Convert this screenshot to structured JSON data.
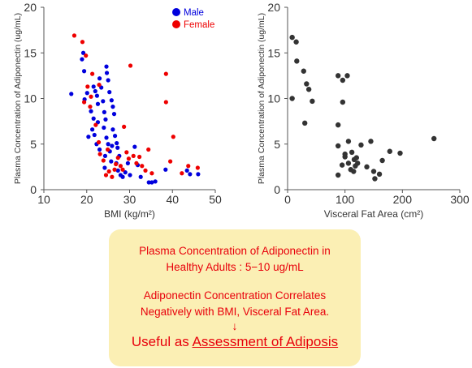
{
  "chart_data": [
    {
      "type": "scatter",
      "xlabel": "BMI (kg/m²)",
      "ylabel": "Plasma Concentration of Adiponectin (ug/mL)",
      "xlim": [
        10,
        50
      ],
      "ylim": [
        0,
        20
      ],
      "xticks": [
        "10",
        "20",
        "30",
        "40",
        "50"
      ],
      "yticks": [
        "0",
        "5",
        "10",
        "15",
        "20"
      ],
      "grid": false,
      "legend_position": "top-right",
      "series": [
        {
          "name": "Male",
          "color": "#0000dd",
          "points": [
            [
              16.4,
              10.5
            ],
            [
              19.2,
              15.0
            ],
            [
              18.9,
              14.3
            ],
            [
              19.4,
              13.0
            ],
            [
              20.1,
              10.6
            ],
            [
              19.5,
              9.9
            ],
            [
              21.6,
              11.3
            ],
            [
              22.0,
              10.8
            ],
            [
              22.4,
              10.3
            ],
            [
              22.6,
              9.4
            ],
            [
              23.0,
              12.2
            ],
            [
              21.0,
              8.6
            ],
            [
              21.6,
              7.8
            ],
            [
              22.6,
              7.4
            ],
            [
              20.4,
              5.8
            ],
            [
              21.3,
              6.6
            ],
            [
              21.8,
              6.0
            ],
            [
              22.3,
              5.0
            ],
            [
              23.0,
              4.4
            ],
            [
              23.4,
              11.2
            ],
            [
              23.8,
              9.7
            ],
            [
              24.1,
              8.5
            ],
            [
              24.4,
              7.7
            ],
            [
              24.6,
              13.5
            ],
            [
              24.7,
              12.8
            ],
            [
              25.0,
              12.0
            ],
            [
              25.3,
              10.7
            ],
            [
              25.8,
              9.8
            ],
            [
              26.1,
              9.1
            ],
            [
              26.4,
              8.3
            ],
            [
              24.0,
              6.8
            ],
            [
              24.6,
              5.7
            ],
            [
              25.0,
              5.0
            ],
            [
              25.4,
              4.2
            ],
            [
              25.7,
              3.1
            ],
            [
              24.2,
              2.4
            ],
            [
              26.1,
              6.6
            ],
            [
              26.6,
              5.9
            ],
            [
              27.0,
              5.1
            ],
            [
              27.2,
              4.6
            ],
            [
              27.6,
              3.7
            ],
            [
              26.9,
              2.9
            ],
            [
              27.3,
              2.1
            ],
            [
              27.9,
              1.6
            ],
            [
              28.4,
              1.4
            ],
            [
              29.0,
              1.9
            ],
            [
              29.6,
              2.9
            ],
            [
              30.1,
              1.6
            ],
            [
              31.2,
              4.7
            ],
            [
              31.9,
              2.7
            ],
            [
              32.6,
              1.4
            ],
            [
              34.5,
              0.8
            ],
            [
              35.2,
              0.8
            ],
            [
              36.0,
              0.9
            ],
            [
              38.4,
              2.2
            ],
            [
              43.4,
              2.1
            ],
            [
              44.1,
              1.7
            ],
            [
              46.0,
              1.7
            ],
            [
              24.3,
              3.7
            ],
            [
              25.9,
              4.8
            ]
          ]
        },
        {
          "name": "Female",
          "color": "#ee0000",
          "points": [
            [
              17.1,
              16.9
            ],
            [
              19.0,
              16.2
            ],
            [
              19.8,
              14.7
            ],
            [
              20.2,
              11.3
            ],
            [
              21.3,
              12.7
            ],
            [
              22.9,
              11.5
            ],
            [
              19.4,
              9.6
            ],
            [
              20.8,
              9.1
            ],
            [
              21.0,
              10.2
            ],
            [
              22.1,
              7.1
            ],
            [
              22.8,
              5.2
            ],
            [
              23.1,
              3.9
            ],
            [
              23.9,
              3.2
            ],
            [
              24.9,
              4.4
            ],
            [
              25.2,
              2.0
            ],
            [
              24.5,
              1.6
            ],
            [
              25.9,
              1.4
            ],
            [
              26.5,
              2.2
            ],
            [
              26.8,
              2.8
            ],
            [
              27.3,
              3.5
            ],
            [
              27.9,
              2.6
            ],
            [
              28.4,
              2.2
            ],
            [
              28.7,
              6.9
            ],
            [
              29.3,
              4.1
            ],
            [
              29.8,
              3.4
            ],
            [
              30.2,
              13.6
            ],
            [
              30.9,
              3.7
            ],
            [
              31.6,
              2.9
            ],
            [
              32.3,
              3.6
            ],
            [
              32.9,
              2.6
            ],
            [
              33.7,
              2.1
            ],
            [
              34.4,
              4.4
            ],
            [
              38.5,
              12.7
            ],
            [
              38.5,
              9.6
            ],
            [
              39.5,
              3.1
            ],
            [
              40.2,
              5.8
            ],
            [
              42.2,
              1.8
            ],
            [
              43.7,
              2.6
            ],
            [
              45.9,
              2.4
            ],
            [
              35.2,
              1.8
            ]
          ]
        }
      ]
    },
    {
      "type": "scatter",
      "xlabel": "Visceral Fat Area (cm²)",
      "ylabel": "Plasma Concentration of Adiponectin (ug/mL)",
      "xlim": [
        0,
        300
      ],
      "ylim": [
        0,
        20
      ],
      "xticks": [
        "0",
        "100",
        "200",
        "300"
      ],
      "yticks": [
        "0",
        "5",
        "10",
        "15",
        "20"
      ],
      "grid": false,
      "series": [
        {
          "color": "#333333",
          "points": [
            [
              8,
              16.7
            ],
            [
              15,
              16.2
            ],
            [
              8,
              10.0
            ],
            [
              16,
              14.1
            ],
            [
              28,
              13.0
            ],
            [
              33,
              11.6
            ],
            [
              37,
              11.0
            ],
            [
              43,
              9.7
            ],
            [
              30,
              7.3
            ],
            [
              88,
              7.1
            ],
            [
              88,
              12.5
            ],
            [
              96,
              12.0
            ],
            [
              104,
              12.5
            ],
            [
              96,
              9.6
            ],
            [
              106,
              5.3
            ],
            [
              88,
              4.8
            ],
            [
              95,
              2.7
            ],
            [
              100,
              3.6
            ],
            [
              106,
              2.9
            ],
            [
              110,
              2.2
            ],
            [
              115,
              2.0
            ],
            [
              118,
              2.6
            ],
            [
              120,
              3.5
            ],
            [
              112,
              4.1
            ],
            [
              128,
              4.9
            ],
            [
              122,
              2.9
            ],
            [
              138,
              2.5
            ],
            [
              145,
              5.3
            ],
            [
              150,
              2.0
            ],
            [
              160,
              1.7
            ],
            [
              165,
              3.2
            ],
            [
              178,
              4.2
            ],
            [
              196,
              4.0
            ],
            [
              255,
              5.6
            ],
            [
              88,
              1.6
            ],
            [
              152,
              1.2
            ],
            [
              100,
              3.9
            ],
            [
              116,
              3.3
            ]
          ]
        }
      ]
    }
  ],
  "legend": [
    {
      "label": "Male",
      "color": "#0000dd"
    },
    {
      "label": "Female",
      "color": "#ee0000"
    }
  ],
  "summary": {
    "line1": "Plasma Concentration of Adiponectin in",
    "line2": "Healthy Adults : 5−10 ug/mL",
    "line3": "Adiponectin Concentration Correlates",
    "line4": "Negatively with BMI, Visceral Fat Area.",
    "arrow": "↓",
    "useful_prefix": "Useful as ",
    "useful_emphasis": "Assessment of Adiposis",
    "text_color": "#e8000b",
    "background_color": "#fbefb4"
  }
}
